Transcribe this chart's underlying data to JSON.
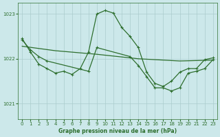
{
  "background_color": "#cce8ea",
  "grid_color": "#aacccc",
  "line_color": "#2d6e2d",
  "title": "Graphe pression niveau de la mer (hPa)",
  "ylabel_ticks": [
    1021,
    1022,
    1023
  ],
  "xlim": [
    -0.5,
    23.5
  ],
  "ylim": [
    1020.65,
    1023.25
  ],
  "series_main": {
    "x": [
      0,
      1,
      2,
      3,
      4,
      5,
      6,
      7,
      8,
      9,
      10,
      11,
      12,
      13,
      14,
      15,
      16,
      17,
      18,
      19,
      20,
      21,
      22,
      23
    ],
    "y": [
      1022.45,
      1022.15,
      1021.88,
      1021.78,
      1021.68,
      1021.72,
      1021.65,
      1021.78,
      1022.15,
      1023.0,
      1023.08,
      1023.02,
      1022.7,
      1022.5,
      1022.25,
      1021.7,
      1021.45,
      1021.38,
      1021.5,
      1021.7,
      1021.78,
      1021.78,
      1021.98,
      1022.02
    ]
  },
  "series_flat": {
    "x": [
      0,
      4,
      9,
      14,
      19,
      23
    ],
    "y": [
      1022.28,
      1022.18,
      1022.1,
      1022.0,
      1021.95,
      1021.97
    ]
  },
  "series_decline": {
    "x": [
      0,
      1,
      2,
      3,
      8,
      9,
      13,
      14,
      15,
      16,
      17,
      18,
      19,
      20,
      21,
      22,
      23
    ],
    "y": [
      1022.42,
      1022.2,
      1022.05,
      1021.95,
      1021.72,
      1022.25,
      1022.05,
      1021.85,
      1021.6,
      1021.35,
      1021.35,
      1021.28,
      1021.35,
      1021.68,
      1021.72,
      1021.78,
      1021.98
    ]
  },
  "marker_size": 3.0,
  "line_width": 0.9
}
